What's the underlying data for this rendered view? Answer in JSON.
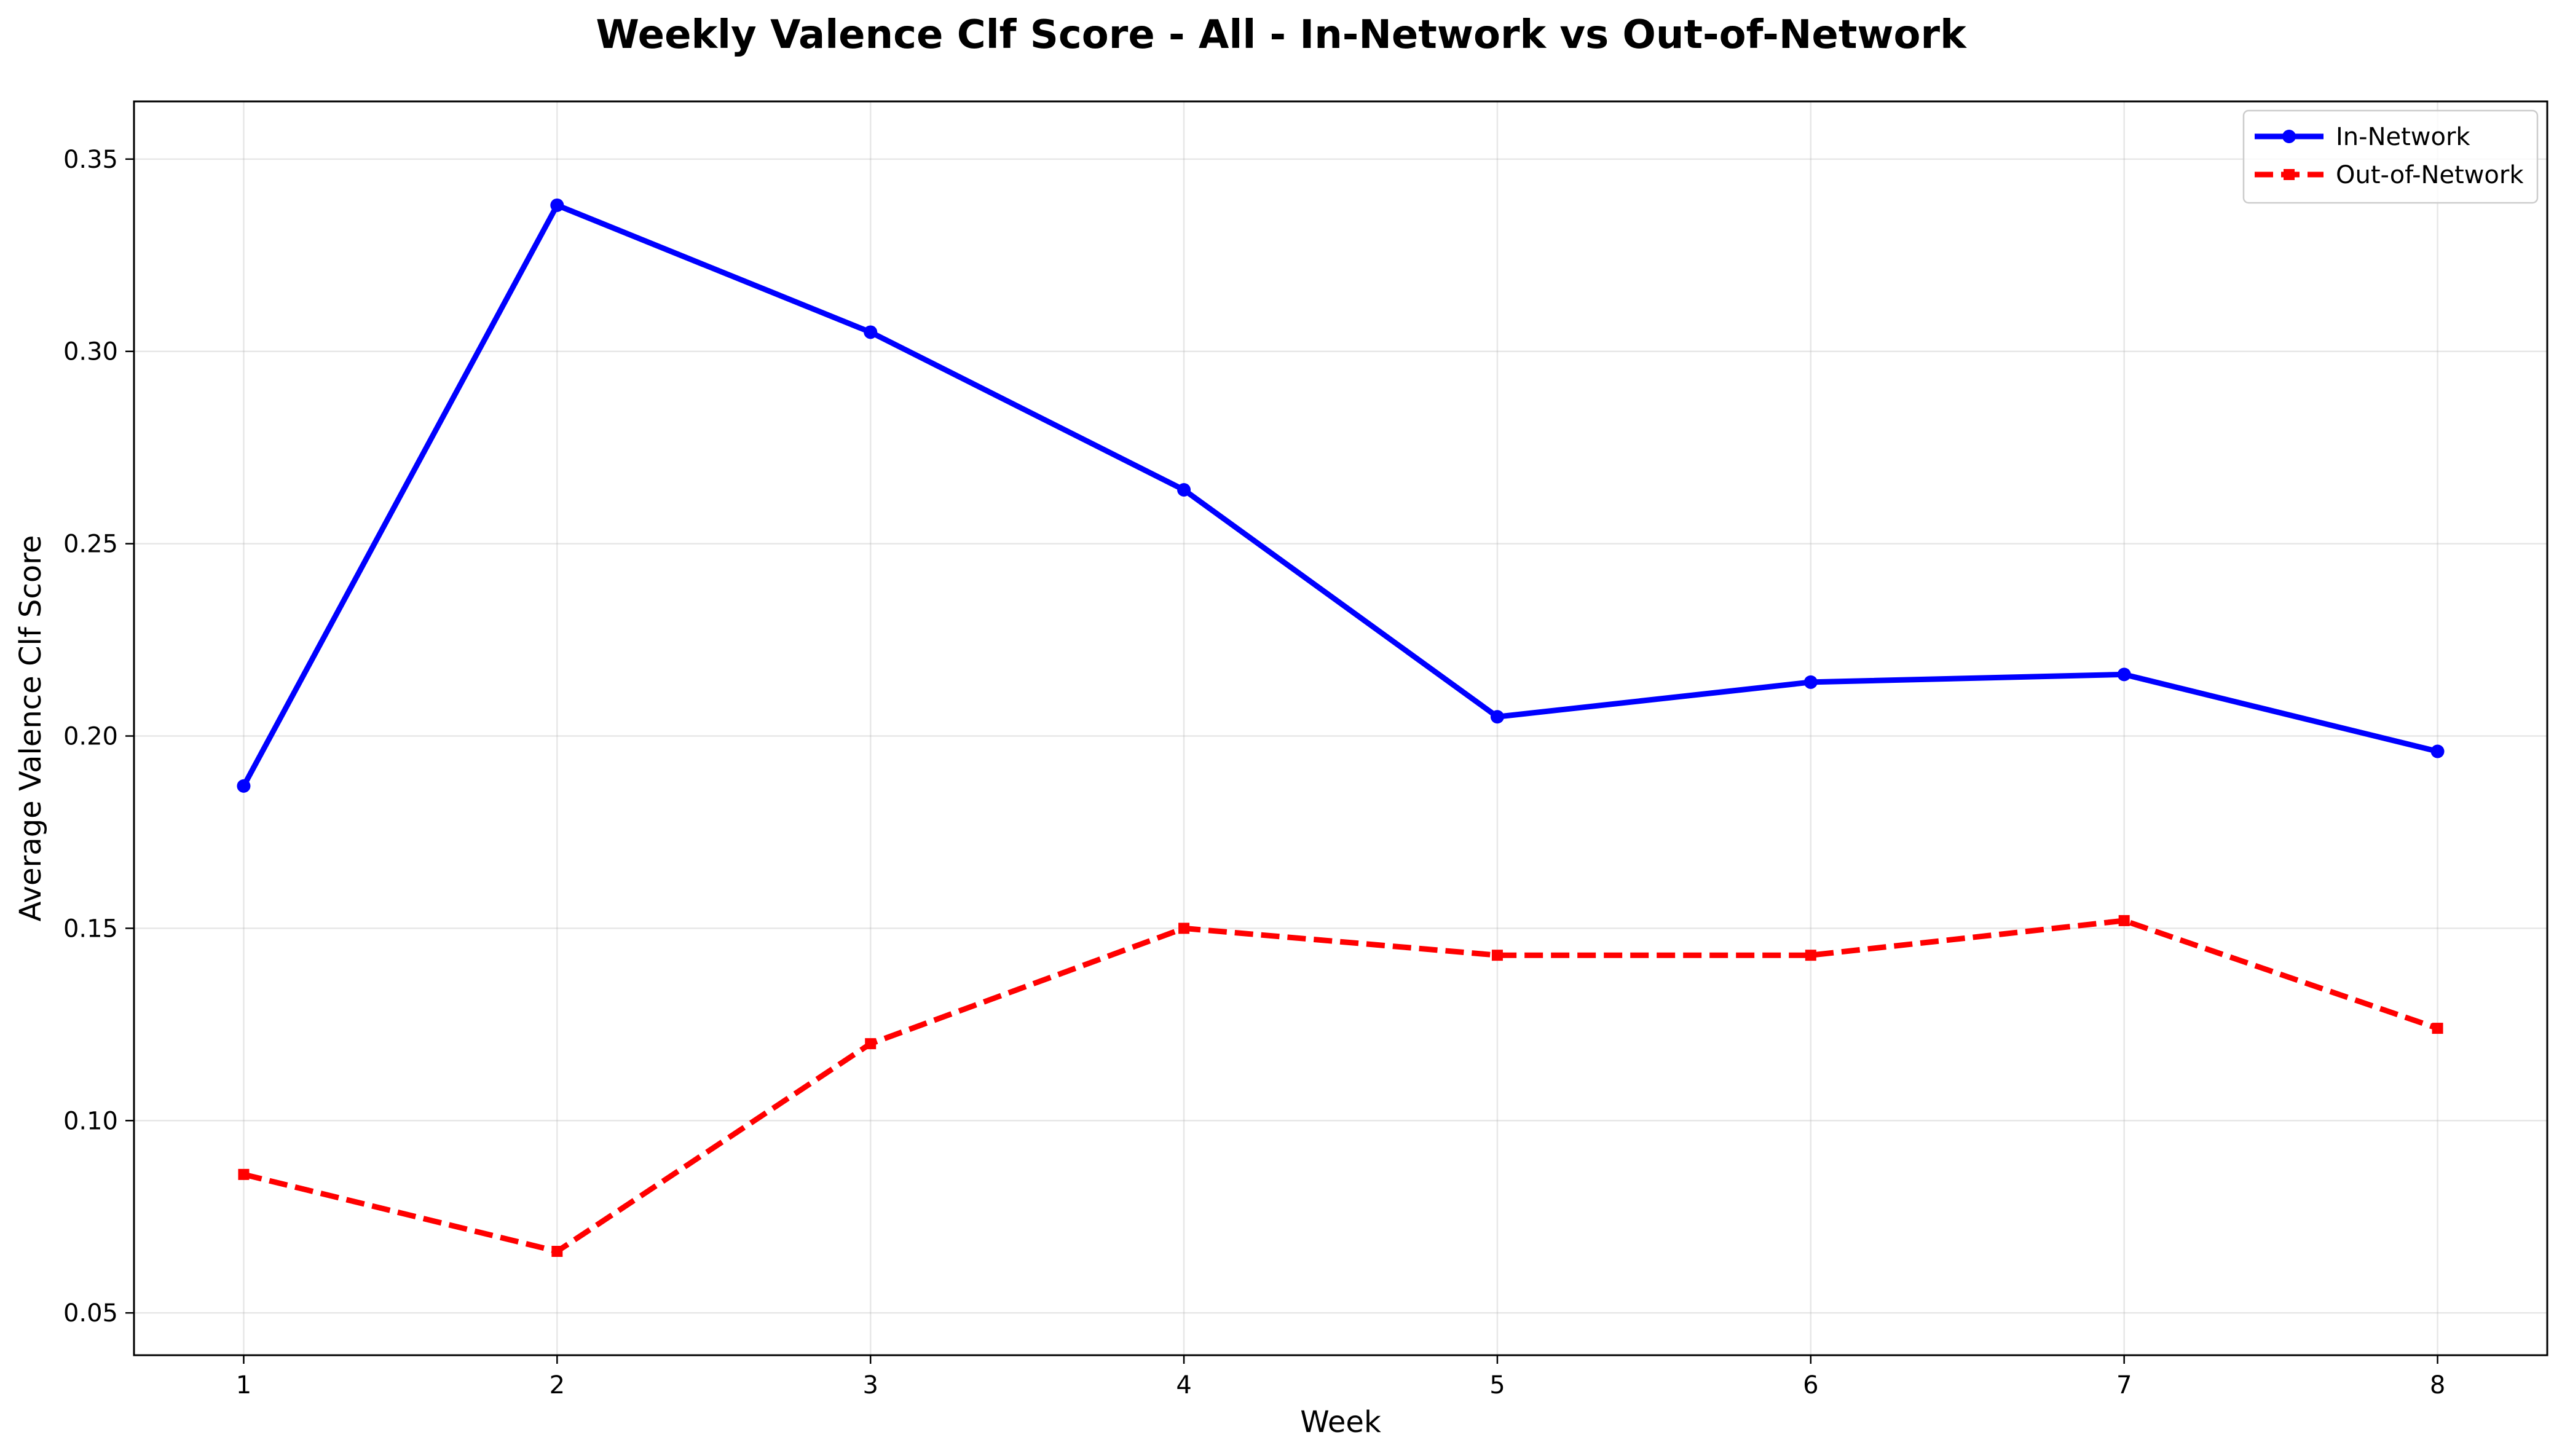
{
  "chart_data": {
    "type": "line",
    "title": "Weekly Valence Clf Score - All - In-Network vs Out-of-Network",
    "xlabel": "Week",
    "ylabel": "Average Valence Clf Score",
    "x": [
      1,
      2,
      3,
      4,
      5,
      6,
      7,
      8
    ],
    "x_ticks": [
      "1",
      "2",
      "3",
      "4",
      "5",
      "6",
      "7",
      "8"
    ],
    "xlim": [
      0.65,
      8.35
    ],
    "ylim": [
      0.039,
      0.365
    ],
    "y_ticks": [
      "0.05",
      "0.10",
      "0.15",
      "0.20",
      "0.25",
      "0.30",
      "0.35"
    ],
    "grid": true,
    "legend_position": "top-right",
    "series": [
      {
        "name": "In-Network",
        "color": "#0000ff",
        "line_style": "solid",
        "marker": "circle",
        "values": [
          0.187,
          0.338,
          0.305,
          0.264,
          0.205,
          0.214,
          0.216,
          0.196
        ]
      },
      {
        "name": "Out-of-Network",
        "color": "#ff0000",
        "line_style": "dashed",
        "marker": "square",
        "values": [
          0.086,
          0.066,
          0.12,
          0.15,
          0.143,
          0.143,
          0.152,
          0.124
        ]
      }
    ]
  }
}
